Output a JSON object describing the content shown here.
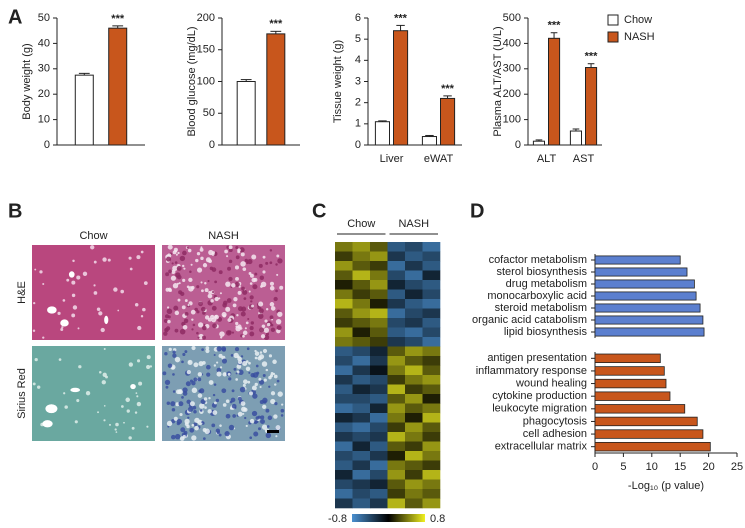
{
  "chart_data": [
    {
      "type": "bar",
      "panel": "A",
      "ylabel": "Body weight (g)",
      "ylim": [
        0,
        50
      ],
      "yticks": [
        0,
        10,
        20,
        30,
        40,
        50
      ],
      "series": [
        {
          "color": "#ffffff",
          "values": [
            27.5
          ],
          "errors": [
            0.7
          ]
        },
        {
          "color": "#c8561c",
          "values": [
            46
          ],
          "errors": [
            0.9
          ]
        }
      ],
      "annotations": [
        "***"
      ]
    },
    {
      "type": "bar",
      "ylabel": "Blood glucose (mg/dL)",
      "ylim": [
        0,
        200
      ],
      "yticks": [
        0,
        50,
        100,
        150,
        200
      ],
      "series": [
        {
          "color": "#ffffff",
          "values": [
            100
          ],
          "errors": [
            3
          ]
        },
        {
          "color": "#c8561c",
          "values": [
            175
          ],
          "errors": [
            4
          ]
        }
      ],
      "annotations": [
        "***"
      ]
    },
    {
      "type": "bar",
      "ylabel": "Tissue weight (g)",
      "categories": [
        "Liver",
        "eWAT"
      ],
      "ylim": [
        0,
        6
      ],
      "yticks": [
        0,
        1,
        2,
        3,
        4,
        5,
        6
      ],
      "series": [
        {
          "color": "#ffffff",
          "values": [
            1.1,
            0.4
          ],
          "errors": [
            0.04,
            0.05
          ]
        },
        {
          "color": "#c8561c",
          "values": [
            5.4,
            2.2
          ],
          "errors": [
            0.25,
            0.12
          ]
        }
      ],
      "annotations": [
        "***",
        "***"
      ]
    },
    {
      "type": "bar",
      "ylabel": "Plasma ALT/AST (U/L)",
      "categories": [
        "ALT",
        "AST"
      ],
      "ylim": [
        0,
        500
      ],
      "yticks": [
        0,
        100,
        200,
        300,
        400,
        500
      ],
      "series": [
        {
          "name": "Chow",
          "color": "#ffffff",
          "values": [
            15,
            55
          ],
          "errors": [
            5,
            8
          ]
        },
        {
          "name": "NASH",
          "color": "#c8561c",
          "values": [
            420,
            305
          ],
          "errors": [
            22,
            15
          ]
        }
      ],
      "annotations": [
        "***",
        "***"
      ]
    },
    {
      "type": "image",
      "panel": "B",
      "column_labels": [
        "Chow",
        "NASH"
      ],
      "row_labels": [
        "H&E",
        "Sirius Red"
      ]
    },
    {
      "type": "heatmap",
      "panel": "C",
      "column_groups": [
        "Chow",
        "NASH"
      ],
      "zlim": [
        -0.8,
        0.8
      ],
      "zticks": [
        -0.8,
        0.8
      ],
      "matrix": [
        [
          0.4,
          0.5,
          0.3,
          -0.5,
          -0.4,
          -0.6
        ],
        [
          0.2,
          0.4,
          0.5,
          -0.3,
          -0.5,
          -0.4
        ],
        [
          0.5,
          0.3,
          0.2,
          -0.6,
          -0.3,
          -0.5
        ],
        [
          0.3,
          0.6,
          0.4,
          -0.4,
          -0.6,
          -0.2
        ],
        [
          0.1,
          0.3,
          0.5,
          -0.2,
          -0.4,
          -0.5
        ],
        [
          0.4,
          0.2,
          0.3,
          -0.5,
          -0.2,
          -0.4
        ],
        [
          0.6,
          0.4,
          0.1,
          -0.3,
          -0.5,
          -0.6
        ],
        [
          0.3,
          0.5,
          0.6,
          -0.6,
          -0.4,
          -0.3
        ],
        [
          0.2,
          0.3,
          0.4,
          -0.4,
          -0.3,
          -0.5
        ],
        [
          0.5,
          0.1,
          0.3,
          -0.5,
          -0.6,
          -0.4
        ],
        [
          0.4,
          0.3,
          0.2,
          -0.3,
          -0.4,
          -0.6
        ],
        [
          -0.5,
          -0.4,
          -0.2,
          0.3,
          0.5,
          0.4
        ],
        [
          -0.4,
          -0.6,
          -0.3,
          0.5,
          0.3,
          0.2
        ],
        [
          -0.6,
          -0.3,
          -0.1,
          0.4,
          0.6,
          0.3
        ],
        [
          -0.3,
          -0.5,
          -0.4,
          0.2,
          0.4,
          0.5
        ],
        [
          -0.5,
          -0.2,
          -0.3,
          0.6,
          0.2,
          0.3
        ],
        [
          -0.4,
          -0.4,
          -0.5,
          0.3,
          0.5,
          0.1
        ],
        [
          -0.6,
          -0.5,
          -0.2,
          0.5,
          0.3,
          0.4
        ],
        [
          -0.2,
          -0.3,
          -0.6,
          0.4,
          0.1,
          0.6
        ],
        [
          -0.5,
          -0.6,
          -0.4,
          0.2,
          0.5,
          0.3
        ],
        [
          -0.3,
          -0.4,
          -0.3,
          0.6,
          0.4,
          0.2
        ],
        [
          -0.6,
          -0.2,
          -0.5,
          0.3,
          0.2,
          0.5
        ],
        [
          -0.4,
          -0.5,
          -0.3,
          0.1,
          0.6,
          0.4
        ],
        [
          -0.5,
          -0.3,
          -0.6,
          0.4,
          0.3,
          0.2
        ],
        [
          -0.2,
          -0.6,
          -0.4,
          0.5,
          0.2,
          0.6
        ],
        [
          -0.4,
          -0.3,
          -0.2,
          0.3,
          0.5,
          0.4
        ],
        [
          -0.6,
          -0.4,
          -0.5,
          0.2,
          0.4,
          0.3
        ],
        [
          -0.3,
          -0.5,
          -0.3,
          0.6,
          0.3,
          0.5
        ]
      ]
    },
    {
      "type": "hbar",
      "panel": "D",
      "xlabel": "-Log₁₀ (p value)",
      "xlim": [
        0,
        25
      ],
      "xticks": [
        0,
        5,
        10,
        15,
        20,
        25
      ],
      "groups": [
        {
          "color": "#5b7fcf",
          "categories": [
            "cofactor metabolism",
            "sterol biosynthesis",
            "drug metabolism",
            "monocarboxylic acid",
            "steroid metabolism",
            "organic acid catabolism",
            "lipid biosynthesis"
          ],
          "values": [
            15,
            16.2,
            17.5,
            17.8,
            18.5,
            19,
            19.2
          ]
        },
        {
          "color": "#c8561c",
          "categories": [
            "antigen presentation",
            "inflammatory response",
            "wound healing",
            "cytokine production",
            "leukocyte migration",
            "phagocytosis",
            "cell adhesion",
            "extracellular matrix"
          ],
          "values": [
            11.5,
            12.2,
            12.5,
            13.2,
            15.8,
            18,
            19,
            20.3
          ]
        }
      ]
    }
  ]
}
